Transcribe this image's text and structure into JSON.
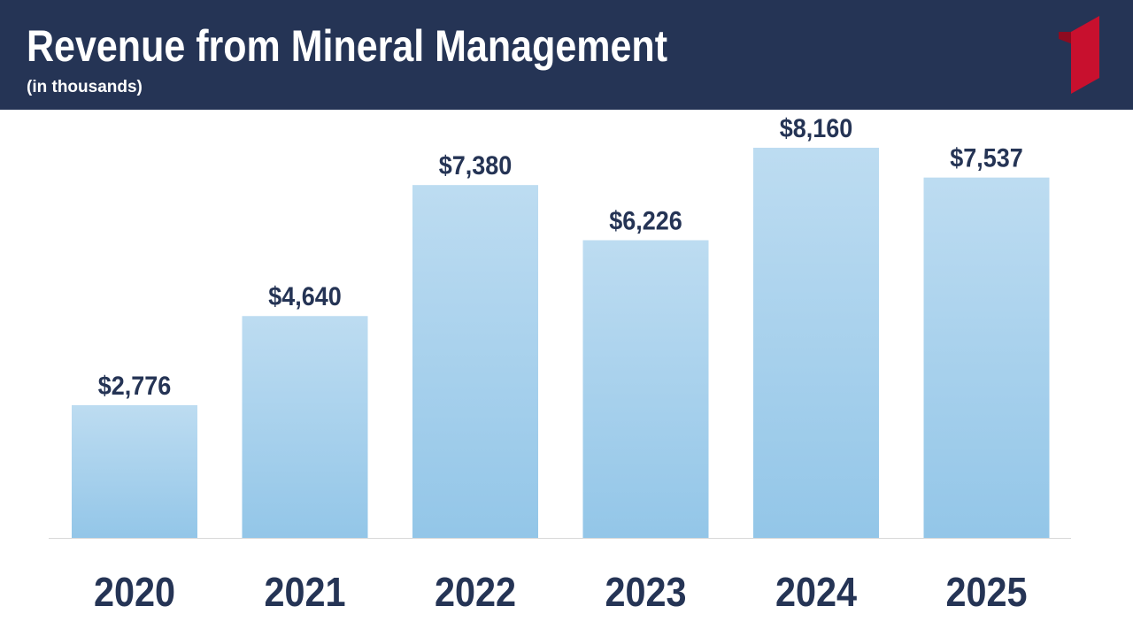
{
  "header": {
    "title": "Revenue from Mineral Management",
    "subtitle": "(in thousands)"
  },
  "colors": {
    "header_bg": "#253455",
    "logo_red": "#c8102e",
    "bar_top": "#bddcf1",
    "bar_bottom": "#93c6e8",
    "label_text": "#253455",
    "baseline": "#d9d9d9"
  },
  "chart_data": {
    "type": "bar",
    "title": "Revenue from Mineral Management",
    "subtitle": "(in thousands)",
    "categories": [
      "2020",
      "2021",
      "2022",
      "2023",
      "2024",
      "2025"
    ],
    "values": [
      2776,
      4640,
      7380,
      6226,
      8160,
      7537
    ],
    "value_labels": [
      "$2,776",
      "$4,640",
      "$7,380",
      "$6,226",
      "$8,160",
      "$7,537"
    ],
    "xlabel": "",
    "ylabel": "",
    "ylim": [
      0,
      9000
    ],
    "grid": false,
    "legend": "none"
  }
}
